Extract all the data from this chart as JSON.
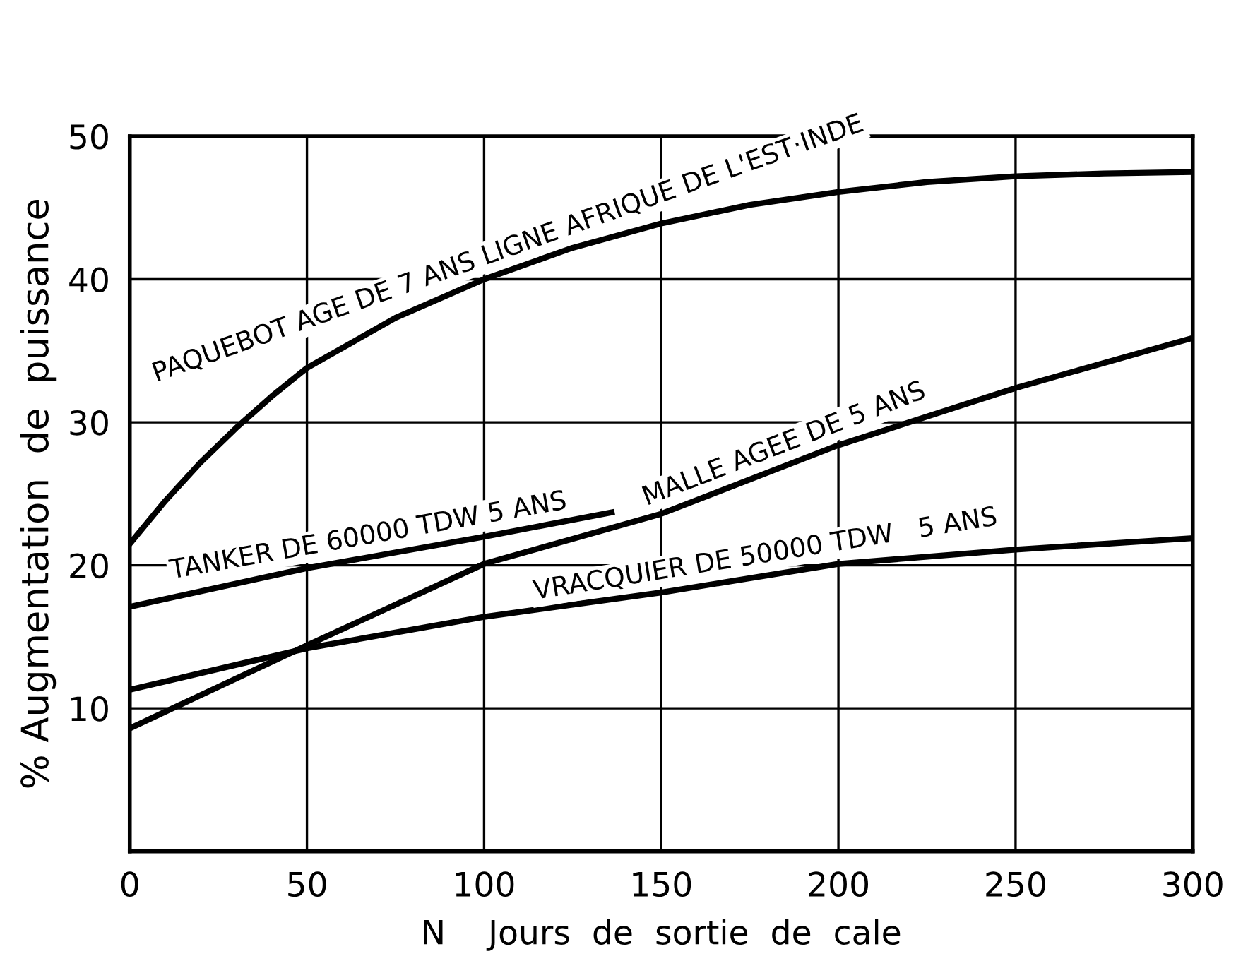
{
  "chart_data": {
    "type": "line",
    "xlabel": "N    Jours  de  sortie  de  cale",
    "ylabel": "% Augmentation  de  puissance",
    "x": [
      0,
      50,
      100,
      150,
      200,
      250,
      300
    ],
    "series": [
      {
        "name": "PAQUEBOT AGE DE 7 ANS LIGNE AFRIQUE DE L'EST·INDE",
        "color": "#000000",
        "x": [
          0,
          10,
          20,
          30,
          40,
          50,
          75,
          100,
          125,
          150,
          175,
          200,
          225,
          250,
          275,
          300
        ],
        "values": [
          21.5,
          24.5,
          27.2,
          29.6,
          31.8,
          33.8,
          37.3,
          40.0,
          42.2,
          43.9,
          45.2,
          46.1,
          46.8,
          47.2,
          47.4,
          47.5
        ]
      },
      {
        "name": "TANKER DE 60000 TDW 5 ANS",
        "color": "#000000",
        "x": [
          0,
          50,
          100,
          136
        ],
        "values": [
          17.1,
          19.8,
          22.0,
          23.7
        ]
      },
      {
        "name": "MALLE AGEE DE 5 ANS",
        "color": "#000000",
        "values": [
          8.6,
          14.4,
          20.1,
          23.6,
          28.4,
          32.4,
          35.9
        ]
      },
      {
        "name": "VRACQUIER DE 50000 TDW   5 ANS",
        "color": "#000000",
        "values": [
          11.3,
          14.2,
          16.4,
          18.1,
          20.1,
          21.1,
          21.9
        ]
      }
    ],
    "xlim": [
      0,
      300
    ],
    "ylim": [
      0,
      50
    ],
    "xticks": [
      0,
      50,
      100,
      150,
      200,
      250,
      300
    ],
    "yticks": [
      10,
      20,
      30,
      40,
      50
    ],
    "grid": true,
    "legend": false,
    "marker": "none",
    "line_style": "solid"
  }
}
